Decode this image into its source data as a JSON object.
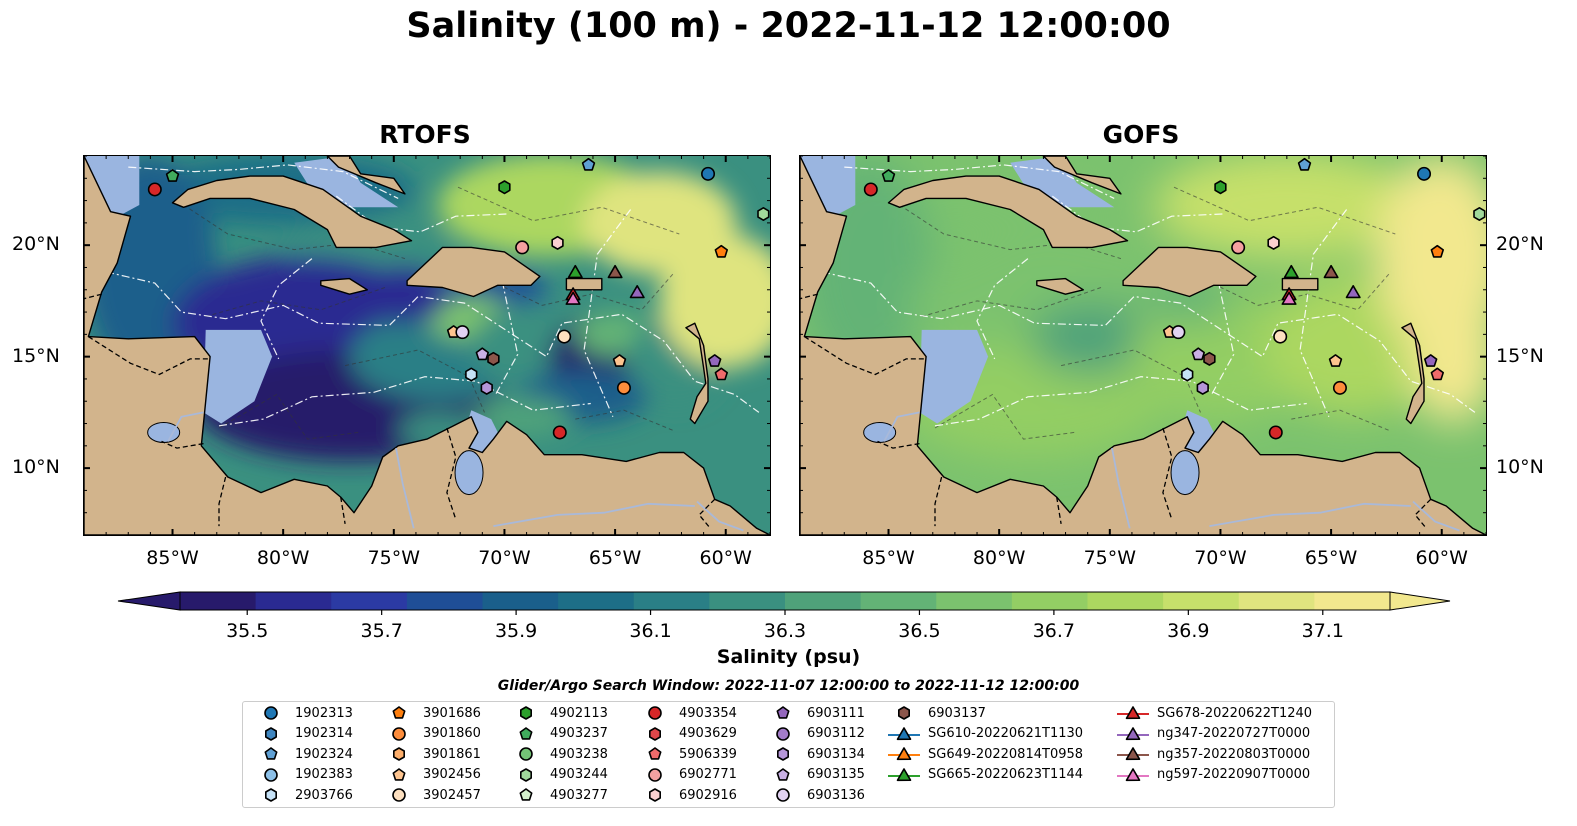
{
  "title": "Salinity (100 m) - 2022-11-12 12:00:00",
  "panels": [
    {
      "name": "RTOFS",
      "theme": "rtofs"
    },
    {
      "name": "GOFS",
      "theme": "gofs"
    }
  ],
  "x_ticks": [
    "85°W",
    "80°W",
    "75°W",
    "70°W",
    "65°W",
    "60°W"
  ],
  "x_tick_lons": [
    -85,
    -80,
    -75,
    -70,
    -65,
    -60
  ],
  "y_ticks": [
    "20°N",
    "15°N",
    "10°N"
  ],
  "y_tick_lats": [
    20,
    15,
    10
  ],
  "extent": {
    "lon": [
      -89,
      -58
    ],
    "lat": [
      7,
      24
    ]
  },
  "colorbar": {
    "label": "Salinity (psu)",
    "min": 35.4,
    "max": 37.2,
    "extend": "both",
    "ticks": [
      "35.5",
      "35.7",
      "35.9",
      "36.1",
      "36.3",
      "36.5",
      "36.7",
      "36.9",
      "37.1"
    ],
    "tick_values": [
      35.5,
      35.7,
      35.9,
      36.1,
      36.3,
      36.5,
      36.7,
      36.9,
      37.1
    ],
    "colors": [
      "#271a6b",
      "#2a2a91",
      "#2b3aa3",
      "#1f4e96",
      "#1a5f8b",
      "#1d6e87",
      "#2a7f86",
      "#3a9080",
      "#4fa27a",
      "#63b376",
      "#7bc26e",
      "#93ce64",
      "#acd760",
      "#c6e06b",
      "#dfe47f",
      "#f2e88e"
    ],
    "land_color": "#d2b48c",
    "shallow_color": "#9ab5e0"
  },
  "legend_title": "Glider/Argo Search Window: 2022-11-07 12:00:00 to 2022-11-12 12:00:00",
  "legend": {
    "columns": [
      [
        {
          "label": "1902313",
          "marker": "circle",
          "color": "#1f77b4"
        },
        {
          "label": "1902314",
          "marker": "hexagon",
          "color": "#3f86c0"
        },
        {
          "label": "1902324",
          "marker": "pentagon",
          "color": "#5fa0d4"
        },
        {
          "label": "1902383",
          "marker": "circle",
          "color": "#8cc0e8"
        },
        {
          "label": "2903766",
          "marker": "hexagon",
          "color": "#c6e2f7"
        }
      ],
      [
        {
          "label": "3901686",
          "marker": "pentagon",
          "color": "#ff7f0e"
        },
        {
          "label": "3901860",
          "marker": "circle",
          "color": "#fd8d3c"
        },
        {
          "label": "3901861",
          "marker": "hexagon",
          "color": "#fdae6b"
        },
        {
          "label": "3902456",
          "marker": "pentagon",
          "color": "#fdc48f"
        },
        {
          "label": "3902457",
          "marker": "circle",
          "color": "#fde0c0"
        }
      ],
      [
        {
          "label": "4902113",
          "marker": "hexagon",
          "color": "#2ca02c"
        },
        {
          "label": "4903237",
          "marker": "pentagon",
          "color": "#41ab5d"
        },
        {
          "label": "4903238",
          "marker": "circle",
          "color": "#74c476"
        },
        {
          "label": "4903244",
          "marker": "hexagon",
          "color": "#a1d99b"
        },
        {
          "label": "4903277",
          "marker": "pentagon",
          "color": "#d4f0cc"
        }
      ],
      [
        {
          "label": "4903354",
          "marker": "circle",
          "color": "#d62728"
        },
        {
          "label": "4903629",
          "marker": "hexagon",
          "color": "#e0474a"
        },
        {
          "label": "5906339",
          "marker": "pentagon",
          "color": "#ef6b6b"
        },
        {
          "label": "6902771",
          "marker": "circle",
          "color": "#f4a0a0"
        },
        {
          "label": "6902916",
          "marker": "hexagon",
          "color": "#fbd0d0"
        }
      ],
      [
        {
          "label": "6903111",
          "marker": "pentagon",
          "color": "#9467bd"
        },
        {
          "label": "6903112",
          "marker": "circle",
          "color": "#a27cc8"
        },
        {
          "label": "6903134",
          "marker": "hexagon",
          "color": "#b596d8"
        },
        {
          "label": "6903135",
          "marker": "pentagon",
          "color": "#c9b0e4"
        },
        {
          "label": "6903136",
          "marker": "circle",
          "color": "#e2d2f2"
        }
      ],
      [
        {
          "label": "6903137",
          "marker": "hexagon",
          "color": "#8c564b"
        },
        {
          "label": "SG610-20220621T1130",
          "marker": "triangle",
          "color": "#1f77b4"
        },
        {
          "label": "SG649-20220814T0958",
          "marker": "triangle",
          "color": "#ff7f0e"
        },
        {
          "label": "SG665-20220623T1144",
          "marker": "triangle",
          "color": "#2ca02c"
        }
      ],
      [
        {
          "label": "SG678-20220622T1240",
          "marker": "triangle",
          "color": "#d62728"
        },
        {
          "label": "ng347-20220727T0000",
          "marker": "triangle",
          "color": "#9467bd"
        },
        {
          "label": "ng357-20220803T0000",
          "marker": "triangle",
          "color": "#8c564b"
        },
        {
          "label": "ng597-20220907T0000",
          "marker": "triangle",
          "color": "#e377c2"
        }
      ]
    ]
  },
  "observations": [
    {
      "lon": -85.8,
      "lat": 22.5,
      "marker": "circle",
      "color": "#d62728"
    },
    {
      "lon": -85.0,
      "lat": 23.1,
      "marker": "pentagon",
      "color": "#41ab5d"
    },
    {
      "lon": -66.2,
      "lat": 23.6,
      "marker": "pentagon",
      "color": "#5fa0d4"
    },
    {
      "lon": -60.8,
      "lat": 23.2,
      "marker": "circle",
      "color": "#1f77b4"
    },
    {
      "lon": -70.0,
      "lat": 22.6,
      "marker": "hexagon",
      "color": "#2ca02c"
    },
    {
      "lon": -58.3,
      "lat": 21.4,
      "marker": "hexagon",
      "color": "#a1d99b"
    },
    {
      "lon": -69.2,
      "lat": 19.9,
      "marker": "circle",
      "color": "#f4a0a0"
    },
    {
      "lon": -67.6,
      "lat": 20.1,
      "marker": "hexagon",
      "color": "#fbd0d0"
    },
    {
      "lon": -60.2,
      "lat": 19.7,
      "marker": "pentagon",
      "color": "#ff7f0e"
    },
    {
      "lon": -67.3,
      "lat": 15.9,
      "marker": "circle",
      "color": "#fde0c0"
    },
    {
      "lon": -72.3,
      "lat": 16.1,
      "marker": "pentagon",
      "color": "#fdc48f"
    },
    {
      "lon": -71.9,
      "lat": 16.1,
      "marker": "circle",
      "color": "#e2d2f2"
    },
    {
      "lon": -71.0,
      "lat": 15.1,
      "marker": "pentagon",
      "color": "#c9b0e4"
    },
    {
      "lon": -70.5,
      "lat": 14.9,
      "marker": "hexagon",
      "color": "#8c564b"
    },
    {
      "lon": -71.5,
      "lat": 14.2,
      "marker": "hexagon",
      "color": "#c6e2f7"
    },
    {
      "lon": -70.8,
      "lat": 13.6,
      "marker": "hexagon",
      "color": "#b596d8"
    },
    {
      "lon": -64.8,
      "lat": 14.8,
      "marker": "pentagon",
      "color": "#fdc48f"
    },
    {
      "lon": -64.6,
      "lat": 13.6,
      "marker": "circle",
      "color": "#fd8d3c"
    },
    {
      "lon": -60.5,
      "lat": 14.8,
      "marker": "pentagon",
      "color": "#9467bd"
    },
    {
      "lon": -60.2,
      "lat": 14.2,
      "marker": "pentagon",
      "color": "#ef6b6b"
    },
    {
      "lon": -67.5,
      "lat": 11.6,
      "marker": "circle",
      "color": "#d62728"
    },
    {
      "lon": -66.8,
      "lat": 18.8,
      "marker": "triangle",
      "color": "#2ca02c"
    },
    {
      "lon": -66.9,
      "lat": 17.8,
      "marker": "triangle",
      "color": "#d62728"
    },
    {
      "lon": -66.9,
      "lat": 17.6,
      "marker": "triangle",
      "color": "#e377c2"
    },
    {
      "lon": -65.0,
      "lat": 18.8,
      "marker": "triangle",
      "color": "#8c564b"
    },
    {
      "lon": -64.0,
      "lat": 17.9,
      "marker": "triangle",
      "color": "#9467bd"
    }
  ]
}
